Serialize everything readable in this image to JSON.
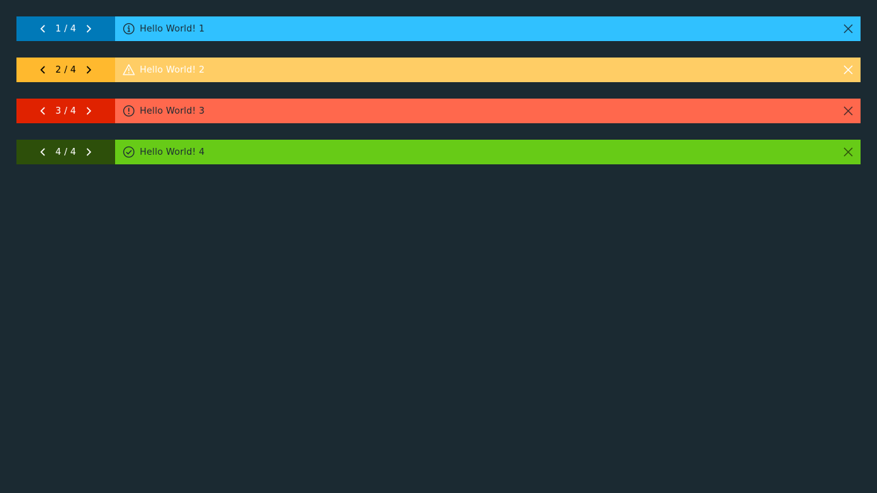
{
  "alerts": [
    {
      "counter": "1 / 4",
      "message": "Hello World! 1",
      "status_icon": "info-circle-icon",
      "pager_bg": "#0079b8",
      "pager_fg": "#ffffff",
      "body_bg": "#30c1ff",
      "body_fg": "#1b2a32",
      "icon_color": "#1b2a32",
      "close_color": "#1b3a4a"
    },
    {
      "counter": "2 / 4",
      "message": "Hello World! 2",
      "status_icon": "warning-triangle-icon",
      "pager_bg": "#ffb92e",
      "pager_fg": "#000000",
      "body_bg": "#ffcd65",
      "body_fg": "#ffffff",
      "icon_color": "#ffffff",
      "close_color": "#ffffff"
    },
    {
      "counter": "3 / 4",
      "message": "Hello World! 3",
      "status_icon": "error-circle-icon",
      "pager_bg": "#e02200",
      "pager_fg": "#ffffff",
      "body_bg": "#ff684d",
      "body_fg": "#1b2a32",
      "icon_color": "#1b2a32",
      "close_color": "#4a2a2a"
    },
    {
      "counter": "4 / 4",
      "message": "Hello World! 4",
      "status_icon": "check-circle-icon",
      "pager_bg": "#2d4f0a",
      "pager_fg": "#ffffff",
      "body_bg": "#67cb17",
      "body_fg": "#1b2a32",
      "icon_color": "#1b2a32",
      "close_color": "#2d4f0a"
    }
  ]
}
